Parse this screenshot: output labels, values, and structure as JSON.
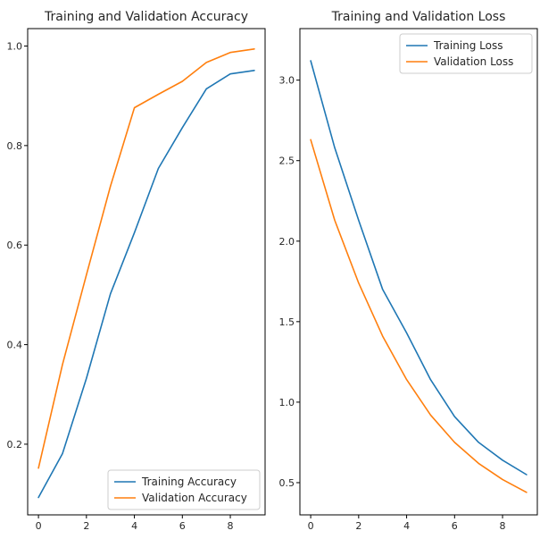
{
  "colors": {
    "series_1": "#1f77b4",
    "series_2": "#ff7f0e"
  },
  "chart_data": [
    {
      "type": "line",
      "title": "Training and Validation Accuracy",
      "xlabel": "",
      "ylabel": "",
      "xlim": [
        -0.45,
        9.45
      ],
      "ylim": [
        0.058,
        1.035
      ],
      "xticks": [
        0,
        2,
        4,
        6,
        8
      ],
      "yticks": [
        0.2,
        0.4,
        0.6,
        0.8,
        1.0
      ],
      "ytick_labels": [
        "0.2",
        "0.4",
        "0.6",
        "0.8",
        "1.0"
      ],
      "grid": false,
      "legend_position": "lower-right",
      "x": [
        0,
        1,
        2,
        3,
        4,
        5,
        6,
        7,
        8,
        9
      ],
      "series": [
        {
          "name": "Training Accuracy",
          "values": [
            0.093,
            0.181,
            0.332,
            0.502,
            0.625,
            0.754,
            0.836,
            0.914,
            0.944,
            0.951
          ]
        },
        {
          "name": "Validation Accuracy",
          "values": [
            0.152,
            0.36,
            0.54,
            0.718,
            0.876,
            0.903,
            0.929,
            0.967,
            0.987,
            0.994
          ]
        }
      ]
    },
    {
      "type": "line",
      "title": "Training and Validation Loss",
      "xlabel": "",
      "ylabel": "",
      "xlim": [
        -0.45,
        9.45
      ],
      "ylim": [
        0.3,
        3.32
      ],
      "xticks": [
        0,
        2,
        4,
        6,
        8
      ],
      "yticks": [
        0.5,
        1.0,
        1.5,
        2.0,
        2.5,
        3.0
      ],
      "ytick_labels": [
        "0.5",
        "1.0",
        "1.5",
        "2.0",
        "2.5",
        "3.0"
      ],
      "grid": false,
      "legend_position": "upper-right",
      "x": [
        0,
        1,
        2,
        3,
        4,
        5,
        6,
        7,
        8,
        9
      ],
      "series": [
        {
          "name": "Training Loss",
          "values": [
            3.12,
            2.58,
            2.13,
            1.7,
            1.43,
            1.14,
            0.91,
            0.75,
            0.64,
            0.55
          ]
        },
        {
          "name": "Validation Loss",
          "values": [
            2.63,
            2.13,
            1.74,
            1.41,
            1.14,
            0.92,
            0.75,
            0.62,
            0.52,
            0.44
          ]
        }
      ]
    }
  ]
}
